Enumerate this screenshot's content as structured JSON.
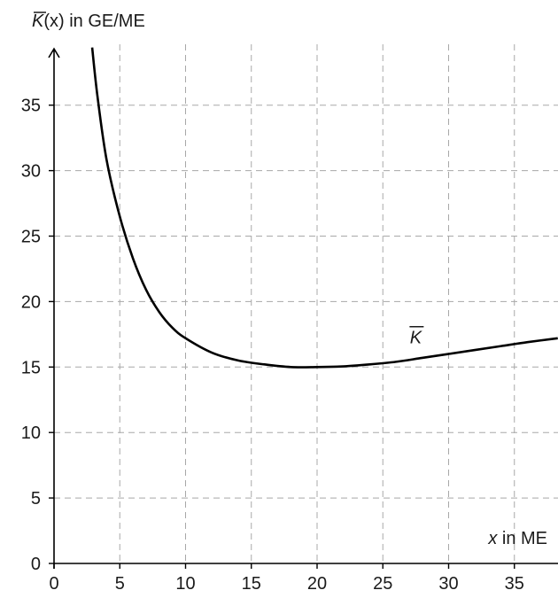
{
  "chart_data": {
    "type": "line",
    "ylabel": "K(x) in GE/ME",
    "ylabel_symbol": "K",
    "ylabel_rest": "(x) in GE/ME",
    "xlabel": "x in ME",
    "xlabel_symbol": "x",
    "xlabel_rest": " in ME",
    "xlim": [
      0,
      38.3
    ],
    "ylim": [
      0,
      40
    ],
    "xticks": [
      0,
      5,
      10,
      15,
      20,
      25,
      30,
      35
    ],
    "yticks": [
      0,
      5,
      10,
      15,
      20,
      25,
      30,
      35
    ],
    "grid": true,
    "series": [
      {
        "name": "K",
        "x": [
          2.9,
          3.3,
          4,
          5,
          6,
          7,
          8,
          9,
          10,
          12,
          14,
          16,
          18,
          20,
          22,
          24,
          26,
          28,
          30,
          32,
          34,
          36,
          38.3
        ],
        "y": [
          39.4,
          35.7,
          30.8,
          26.5,
          23.3,
          20.9,
          19.2,
          18.0,
          17.2,
          16.1,
          15.5,
          15.2,
          15.0,
          15.0,
          15.05,
          15.2,
          15.4,
          15.7,
          16.0,
          16.3,
          16.6,
          16.9,
          17.2
        ]
      }
    ],
    "annotations": [
      {
        "text": "K",
        "x": 27.5,
        "y": 16.8
      }
    ]
  }
}
